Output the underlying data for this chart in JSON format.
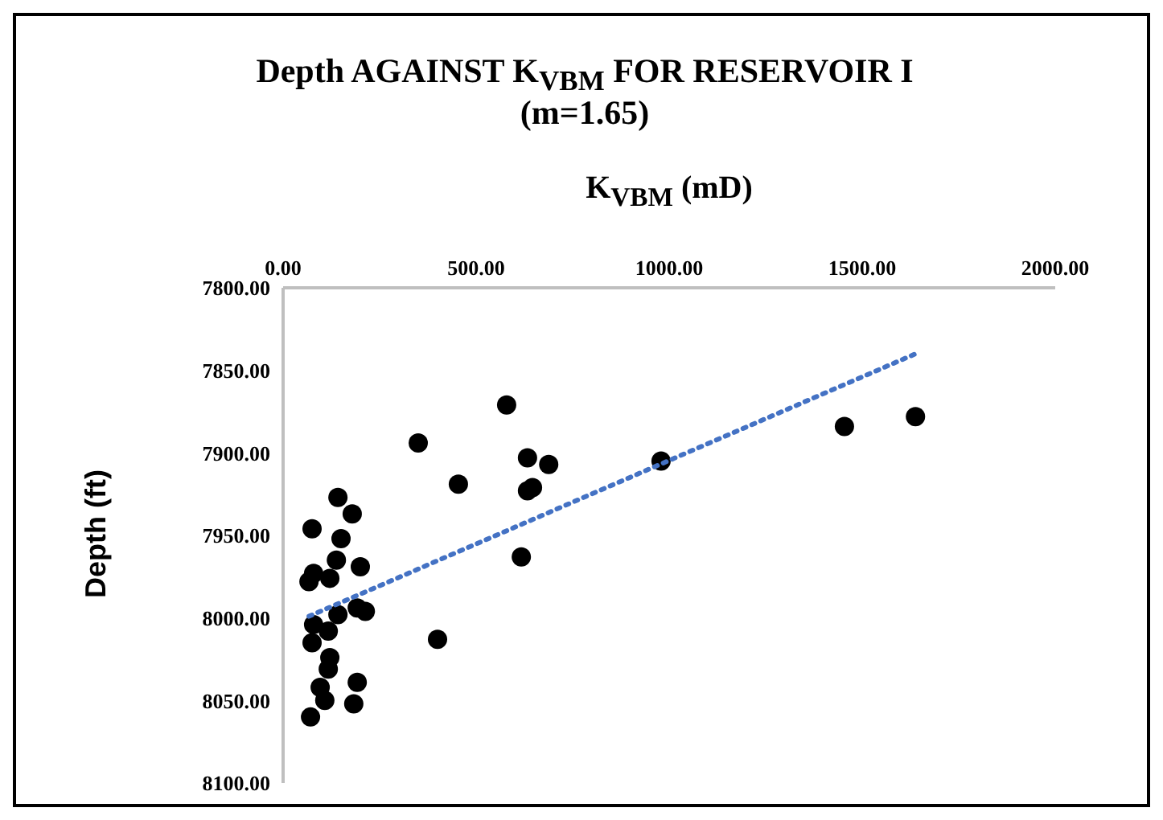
{
  "chart_data": {
    "type": "scatter",
    "title": "Depth AGAINST K$_{VBM}$ FOR RESERVOIR I",
    "subtitle": "(m=1.65)",
    "xlabel": "K$_{VBM}$ (mD)",
    "ylabel": "Depth (ft)",
    "xlim": [
      0,
      2000
    ],
    "xticks": [
      {
        "value": 0,
        "label": "0.00"
      },
      {
        "value": 500,
        "label": "500.00"
      },
      {
        "value": 1000,
        "label": "1000.00"
      },
      {
        "value": 1500,
        "label": "1500.00"
      },
      {
        "value": 2000,
        "label": "2000.00"
      }
    ],
    "ylim": [
      8100,
      7800
    ],
    "yticks": [
      {
        "value": 7800,
        "label": "7800.00"
      },
      {
        "value": 7850,
        "label": "7850.00"
      },
      {
        "value": 7900,
        "label": "7900.00"
      },
      {
        "value": 7950,
        "label": "7950.00"
      },
      {
        "value": 8000,
        "label": "8000.00"
      },
      {
        "value": 8050,
        "label": "8050.00"
      },
      {
        "value": 8100,
        "label": "8100.00"
      }
    ],
    "marker": "circle",
    "series": [
      {
        "type": "scatter",
        "color": "#000000",
        "x": [
          142,
          179,
          75,
          150,
          138,
          200,
          79,
          67,
          121,
          213,
          192,
          142,
          79,
          117,
          75,
          121,
          117,
          96,
          108,
          192,
          183,
          71,
          579,
          350,
          454,
          633,
          688,
          633,
          646,
          979,
          1454,
          1638,
          617,
          400
        ],
        "values": [
          7927,
          7937,
          7946,
          7952,
          7965,
          7969,
          7973,
          7978,
          7976,
          7996,
          7994,
          7998,
          8004,
          8008,
          8015,
          8024,
          8031,
          8042,
          8050,
          8039,
          8052,
          8060,
          7871,
          7894,
          7919,
          7903,
          7907,
          7923,
          7921,
          7905,
          7884,
          7878,
          7963,
          8013
        ]
      },
      {
        "type": "line",
        "color": "#4472c4",
        "line_style": "dotted",
        "marker": "none",
        "x": [
          67,
          1638
        ],
        "values": [
          7999,
          7840
        ]
      }
    ]
  }
}
